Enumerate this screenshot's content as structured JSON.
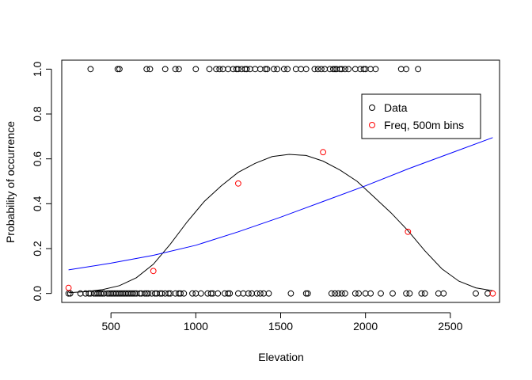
{
  "chart_data": {
    "type": "scatter",
    "xlabel": "Elevation",
    "ylabel": "Probability of occurrence",
    "xlim": [
      210,
      2790
    ],
    "ylim": [
      -0.04,
      1.04
    ],
    "xticks": [
      500,
      1000,
      1500,
      2000,
      2500
    ],
    "yticks": [
      0.0,
      0.2,
      0.4,
      0.6,
      0.8,
      1.0
    ],
    "xtick_labels": [
      "500",
      "1000",
      "1500",
      "2000",
      "2500"
    ],
    "ytick_labels": [
      "0.0",
      "0.2",
      "0.4",
      "0.6",
      "0.8",
      "1.0"
    ],
    "legend": {
      "position": "top-right",
      "entries": [
        {
          "label": "Data",
          "color": "#000000",
          "symbol": "open-circle"
        },
        {
          "label": "Freq, 500m bins",
          "color": "#ff0000",
          "symbol": "open-circle"
        }
      ]
    },
    "series": [
      {
        "name": "Data",
        "color": "#000000",
        "points": [
          [
            380,
            1
          ],
          [
            540,
            1
          ],
          [
            550,
            1
          ],
          [
            710,
            1
          ],
          [
            730,
            1
          ],
          [
            820,
            1
          ],
          [
            880,
            1
          ],
          [
            900,
            1
          ],
          [
            1000,
            1
          ],
          [
            1080,
            1
          ],
          [
            1120,
            1
          ],
          [
            1140,
            1
          ],
          [
            1160,
            1
          ],
          [
            1190,
            1
          ],
          [
            1220,
            1
          ],
          [
            1240,
            1
          ],
          [
            1250,
            1
          ],
          [
            1270,
            1
          ],
          [
            1290,
            1
          ],
          [
            1300,
            1
          ],
          [
            1320,
            1
          ],
          [
            1350,
            1
          ],
          [
            1380,
            1
          ],
          [
            1410,
            1
          ],
          [
            1420,
            1
          ],
          [
            1460,
            1
          ],
          [
            1480,
            1
          ],
          [
            1520,
            1
          ],
          [
            1540,
            1
          ],
          [
            1590,
            1
          ],
          [
            1620,
            1
          ],
          [
            1650,
            1
          ],
          [
            1700,
            1
          ],
          [
            1720,
            1
          ],
          [
            1740,
            1
          ],
          [
            1760,
            1
          ],
          [
            1790,
            1
          ],
          [
            1810,
            1
          ],
          [
            1820,
            1
          ],
          [
            1830,
            1
          ],
          [
            1850,
            1
          ],
          [
            1860,
            1
          ],
          [
            1880,
            1
          ],
          [
            1900,
            1
          ],
          [
            1940,
            1
          ],
          [
            1970,
            1
          ],
          [
            1990,
            1
          ],
          [
            2000,
            1
          ],
          [
            2030,
            1
          ],
          [
            2060,
            1
          ],
          [
            2210,
            1
          ],
          [
            2240,
            1
          ],
          [
            2310,
            1
          ],
          [
            250,
            0
          ],
          [
            260,
            0
          ],
          [
            320,
            0
          ],
          [
            350,
            0
          ],
          [
            370,
            0
          ],
          [
            380,
            0
          ],
          [
            400,
            0
          ],
          [
            410,
            0
          ],
          [
            420,
            0
          ],
          [
            430,
            0
          ],
          [
            440,
            0
          ],
          [
            450,
            0
          ],
          [
            460,
            0
          ],
          [
            480,
            0
          ],
          [
            490,
            0
          ],
          [
            500,
            0
          ],
          [
            510,
            0
          ],
          [
            520,
            0
          ],
          [
            530,
            0
          ],
          [
            540,
            0
          ],
          [
            550,
            0
          ],
          [
            560,
            0
          ],
          [
            570,
            0
          ],
          [
            580,
            0
          ],
          [
            590,
            0
          ],
          [
            600,
            0
          ],
          [
            610,
            0
          ],
          [
            620,
            0
          ],
          [
            630,
            0
          ],
          [
            640,
            0
          ],
          [
            650,
            0
          ],
          [
            670,
            0
          ],
          [
            680,
            0
          ],
          [
            700,
            0
          ],
          [
            710,
            0
          ],
          [
            720,
            0
          ],
          [
            740,
            0
          ],
          [
            760,
            0
          ],
          [
            770,
            0
          ],
          [
            790,
            0
          ],
          [
            800,
            0
          ],
          [
            820,
            0
          ],
          [
            840,
            0
          ],
          [
            850,
            0
          ],
          [
            880,
            0
          ],
          [
            900,
            0
          ],
          [
            910,
            0
          ],
          [
            930,
            0
          ],
          [
            980,
            0
          ],
          [
            1000,
            0
          ],
          [
            1030,
            0
          ],
          [
            1070,
            0
          ],
          [
            1090,
            0
          ],
          [
            1100,
            0
          ],
          [
            1130,
            0
          ],
          [
            1170,
            0
          ],
          [
            1190,
            0
          ],
          [
            1200,
            0
          ],
          [
            1250,
            0
          ],
          [
            1280,
            0
          ],
          [
            1310,
            0
          ],
          [
            1330,
            0
          ],
          [
            1360,
            0
          ],
          [
            1380,
            0
          ],
          [
            1400,
            0
          ],
          [
            1430,
            0
          ],
          [
            1560,
            0
          ],
          [
            1650,
            0
          ],
          [
            1660,
            0
          ],
          [
            1800,
            0
          ],
          [
            1820,
            0
          ],
          [
            1840,
            0
          ],
          [
            1860,
            0
          ],
          [
            1880,
            0
          ],
          [
            1940,
            0
          ],
          [
            1960,
            0
          ],
          [
            2000,
            0
          ],
          [
            2030,
            0
          ],
          [
            2090,
            0
          ],
          [
            2160,
            0
          ],
          [
            2240,
            0
          ],
          [
            2260,
            0
          ],
          [
            2330,
            0
          ],
          [
            2350,
            0
          ],
          [
            2430,
            0
          ],
          [
            2460,
            0
          ],
          [
            2650,
            0
          ],
          [
            2720,
            0
          ]
        ]
      },
      {
        "name": "Freq, 500m bins",
        "color": "#ff0000",
        "points": [
          [
            250,
            0.025
          ],
          [
            750,
            0.1
          ],
          [
            1250,
            0.49
          ],
          [
            1750,
            0.63
          ],
          [
            2250,
            0.275
          ],
          [
            2750,
            0.0
          ]
        ]
      }
    ],
    "fits": [
      {
        "color": "#000000",
        "points": [
          [
            250,
            0.003
          ],
          [
            350,
            0.008
          ],
          [
            450,
            0.017
          ],
          [
            550,
            0.035
          ],
          [
            650,
            0.07
          ],
          [
            750,
            0.13
          ],
          [
            850,
            0.22
          ],
          [
            950,
            0.32
          ],
          [
            1050,
            0.41
          ],
          [
            1150,
            0.48
          ],
          [
            1250,
            0.54
          ],
          [
            1350,
            0.58
          ],
          [
            1450,
            0.61
          ],
          [
            1550,
            0.62
          ],
          [
            1650,
            0.615
          ],
          [
            1750,
            0.59
          ],
          [
            1850,
            0.55
          ],
          [
            1950,
            0.5
          ],
          [
            2050,
            0.43
          ],
          [
            2150,
            0.36
          ],
          [
            2250,
            0.28
          ],
          [
            2350,
            0.19
          ],
          [
            2450,
            0.11
          ],
          [
            2550,
            0.055
          ],
          [
            2650,
            0.025
          ],
          [
            2750,
            0.012
          ]
        ]
      },
      {
        "color": "#0000ff",
        "points": [
          [
            250,
            0.105
          ],
          [
            500,
            0.135
          ],
          [
            750,
            0.17
          ],
          [
            1000,
            0.215
          ],
          [
            1250,
            0.275
          ],
          [
            1500,
            0.34
          ],
          [
            1750,
            0.41
          ],
          [
            2000,
            0.48
          ],
          [
            2250,
            0.555
          ],
          [
            2500,
            0.625
          ],
          [
            2750,
            0.695
          ]
        ]
      }
    ],
    "grid": false
  }
}
